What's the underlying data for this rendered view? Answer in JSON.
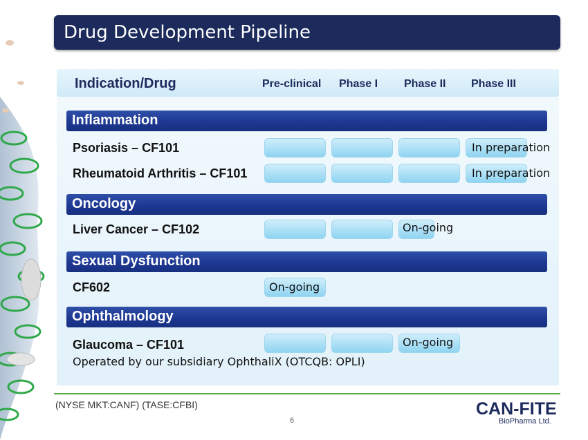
{
  "header": {
    "title": "Drug Development Pipeline"
  },
  "table": {
    "col_indication": "Indication/Drug",
    "col_preclinical": "Pre-clinical",
    "col_phase1": "Phase I",
    "col_phase2": "Phase II",
    "col_phase3": "Phase III"
  },
  "categories": {
    "inflammation": "Inflammation",
    "oncology": "Oncology",
    "sexual": "Sexual Dysfunction",
    "ophthalmology": "Ophthalmology"
  },
  "drugs": {
    "psoriasis": {
      "name": "Psoriasis – CF101",
      "status": "In preparation"
    },
    "ra": {
      "name": "Rheumatoid Arthritis – CF101",
      "status": "In preparation"
    },
    "liver": {
      "name": "Liver Cancer – CF102",
      "status": "On-going"
    },
    "cf602": {
      "name": "CF602",
      "status": "On-going"
    },
    "glaucoma": {
      "name": "Glaucoma – CF101",
      "status": "On-going",
      "note": "Operated by our subsidiary OphthaliX (OTCQB: OPLI)"
    }
  },
  "footer": {
    "tickers": "(NYSE MKT:CANF)  (TASE:CFBI)",
    "page_number": "6",
    "logo_top": "CAN-FITE",
    "logo_bottom": "BioPharma Ltd."
  },
  "colors": {
    "title_bg": "#1c2a5c",
    "category_bar": "#1d3690",
    "progress_bar": "#8fd4f1",
    "footer_line": "#5ca843"
  }
}
